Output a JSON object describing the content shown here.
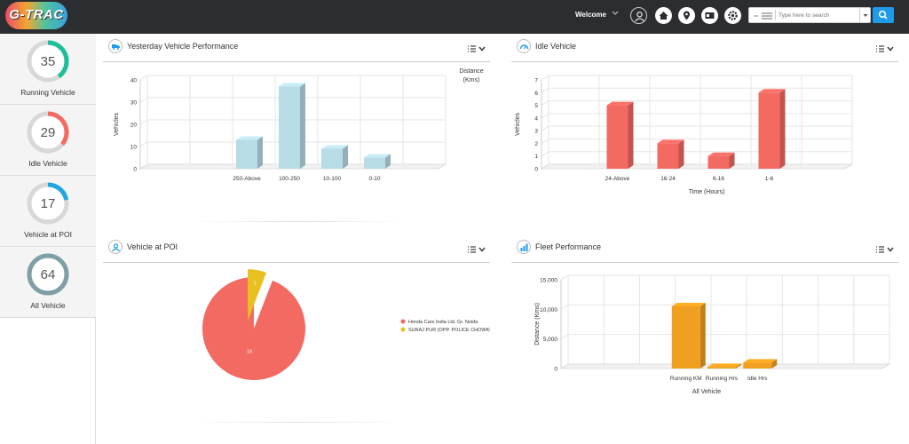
{
  "app": {
    "logo_text": "G-TRAC"
  },
  "header": {
    "welcome": "Welcome",
    "search_placeholder": "Type here to search",
    "icons": [
      "user-icon",
      "home-icon",
      "location-pin-icon",
      "card-icon",
      "settings-icon",
      "search-icon"
    ]
  },
  "sidebar": {
    "stats": [
      {
        "value": "35",
        "label": "Running Vehicle",
        "color": "#1dbf9a",
        "fraction": 0.4
      },
      {
        "value": "29",
        "label": "Idle Vehicle",
        "color": "#f26a62",
        "fraction": 0.36
      },
      {
        "value": "17",
        "label": "Vehicle at POI",
        "color": "#1ea7e1",
        "fraction": 0.22
      },
      {
        "value": "64",
        "label": "All Vehicle",
        "color": "#7e9fa6",
        "fraction": 1.0
      }
    ]
  },
  "panels": {
    "perf": {
      "title": "Yesterday Vehicle Performance"
    },
    "idle": {
      "title": "Idle Vehicle"
    },
    "poi": {
      "title": "Vehicle at POI"
    },
    "fleet": {
      "title": "Fleet Performance"
    }
  },
  "chart_data": [
    {
      "type": "bar",
      "title": "Yesterday Vehicle Performance",
      "categories": [
        "250-Above",
        "100-250",
        "10-100",
        "0-10"
      ],
      "values": [
        13,
        37,
        9,
        5
      ],
      "ylabel": "Vehicles",
      "legend_label": "Distance (Kms)",
      "yticks": [
        "0",
        "10",
        "20",
        "30",
        "40"
      ],
      "ylim": [
        0,
        40
      ],
      "color": "#b8dce6"
    },
    {
      "type": "bar",
      "title": "Idle Vehicle",
      "categories": [
        "24-Above",
        "16-24",
        "6-16",
        "1-6"
      ],
      "values": [
        5,
        2,
        1,
        6
      ],
      "ylabel": "Vehicles",
      "xlabel": "Time (Hours)",
      "yticks": [
        "0",
        "1",
        "2",
        "3",
        "4",
        "5",
        "6",
        "7"
      ],
      "ylim": [
        0,
        7
      ],
      "color": "#f26a62"
    },
    {
      "type": "pie",
      "title": "Vehicle at POI",
      "slices": [
        {
          "label": "Honda Cars India Ltd. Gr. Noida",
          "value": 16,
          "color": "#f26a62"
        },
        {
          "label": "SURAJ PUR (OPP. POLICE CHOWKI)",
          "value": 1,
          "color": "#e8c020"
        }
      ]
    },
    {
      "type": "bar",
      "title": "Fleet Performance",
      "categories": [
        "Running KM",
        "Running Hrs",
        "Idle Hrs"
      ],
      "values": [
        10500,
        250,
        1000
      ],
      "ylabel": "Distance (Kms)",
      "xlabel": "All Vehicle",
      "yticks": [
        "0",
        "5,000",
        "10,000",
        "15,000"
      ],
      "ylim": [
        0,
        15000
      ],
      "color": "#f0a020"
    }
  ]
}
